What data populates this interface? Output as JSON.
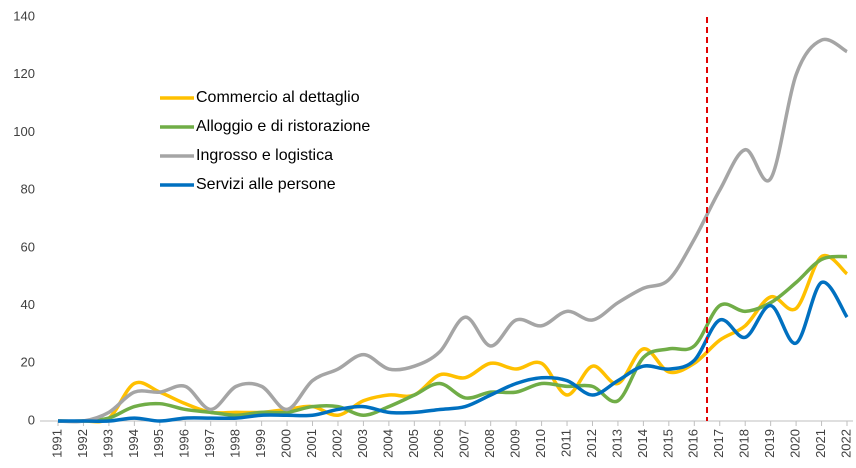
{
  "chart_data": {
    "type": "line",
    "x": [
      1991,
      1992,
      1993,
      1994,
      1995,
      1996,
      1997,
      1998,
      1999,
      2000,
      2001,
      2002,
      2003,
      2004,
      2005,
      2006,
      2007,
      2008,
      2009,
      2010,
      2011,
      2012,
      2013,
      2014,
      2015,
      2016,
      2017,
      2018,
      2019,
      2020,
      2021,
      2022
    ],
    "xlim": [
      1991,
      2022
    ],
    "xticks": [
      1991,
      1992,
      1993,
      1994,
      1995,
      1996,
      1997,
      1998,
      1999,
      2000,
      2001,
      2002,
      2003,
      2004,
      2005,
      2006,
      2007,
      2008,
      2009,
      2010,
      2011,
      2012,
      2013,
      2014,
      2015,
      2016,
      2017,
      2018,
      2019,
      2020,
      2021,
      2022
    ],
    "ylim": [
      0,
      140
    ],
    "yticks": [
      0,
      20,
      40,
      60,
      80,
      100,
      120,
      140
    ],
    "grid": false,
    "legend": "upper left",
    "reference_line": {
      "x": 2016.5,
      "color": "#e00000"
    },
    "series": [
      {
        "name": "Commercio al dettaglio",
        "color": "#ffc000",
        "values": [
          0,
          0,
          1,
          13,
          10,
          6,
          3,
          3,
          3,
          4,
          5,
          2,
          7,
          9,
          9,
          16,
          15,
          20,
          18,
          20,
          9,
          19,
          13,
          25,
          17,
          20,
          28,
          33,
          43,
          39,
          57,
          51
        ]
      },
      {
        "name": "Alloggio e di ristorazione",
        "color": "#70ad47",
        "values": [
          0,
          0,
          1,
          5,
          6,
          4,
          3,
          2,
          3,
          3,
          5,
          5,
          2,
          5,
          9,
          13,
          8,
          10,
          10,
          13,
          12,
          12,
          7,
          22,
          25,
          26,
          40,
          38,
          41,
          48,
          56,
          57
        ]
      },
      {
        "name": "Ingrosso e logistica",
        "color": "#a5a5a5",
        "values": [
          0,
          0,
          3,
          10,
          10,
          12,
          4,
          12,
          12,
          4,
          14,
          18,
          23,
          18,
          19,
          24,
          36,
          26,
          35,
          33,
          38,
          35,
          41,
          46,
          49,
          63,
          80,
          94,
          84,
          120,
          132,
          128
        ]
      },
      {
        "name": "Servizi alle persone",
        "color": "#0070c0",
        "values": [
          0,
          0,
          0,
          1,
          0,
          1,
          1,
          1,
          2,
          2,
          2,
          4,
          5,
          3,
          3,
          4,
          5,
          9,
          13,
          15,
          14,
          9,
          14,
          19,
          18,
          21,
          35,
          29,
          40,
          27,
          48,
          36
        ]
      }
    ]
  }
}
